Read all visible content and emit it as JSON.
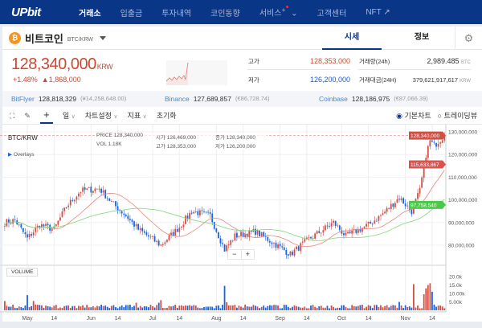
{
  "nav": {
    "logo": "UPbit",
    "items": [
      "거래소",
      "입출금",
      "투자내역",
      "코인동향",
      "서비스",
      "고객센터",
      "NFT ↗"
    ],
    "service_plus": "+"
  },
  "coin": {
    "name": "비트코인",
    "pair": "BTC/KRW",
    "tabs": [
      "시세",
      "정보"
    ]
  },
  "price": {
    "current": "128,340,000",
    "unit": "KRW",
    "change_pct": "+1.48%",
    "change_abs": "▲1,868,000"
  },
  "stats": {
    "high_label": "고가",
    "high": "128,353,000",
    "low_label": "저가",
    "low": "126,200,000",
    "vol_label": "거래량(24h)",
    "vol": "2,989.485",
    "vol_unit": "BTC",
    "amt_label": "거래대금(24H)",
    "amt": "379,621,917,617",
    "amt_unit": "KRW"
  },
  "exchanges": [
    {
      "name": "BitFlyer",
      "price": "128,818,329",
      "sub": "(¥14,258,648.00)"
    },
    {
      "name": "Binance",
      "price": "127,689,857",
      "sub": "(€86,728.74)"
    },
    {
      "name": "Coinbase",
      "price": "128,186,975",
      "sub": "(€87,066.39)"
    }
  ],
  "toolbar": {
    "interval": "일",
    "settings": "차트설정",
    "indicators": "지표",
    "reset": "초기화",
    "basic_chart": "기본차트",
    "tradingview": "트레이딩뷰"
  },
  "legend": {
    "symbol": "BTC/KRW",
    "overlays": "Overlays",
    "price_label": "PRICE",
    "price": "128,340,000",
    "open_label": "시가",
    "open": "126,469,000",
    "close_label": "종가",
    "close": "128,340,000",
    "vol_label": "VOL",
    "vol": "1.18K",
    "high_label": "고가",
    "high": "128,353,000",
    "low_label": "저가",
    "low": "126,200,000",
    "volume_title": "VOLUME"
  },
  "colors": {
    "up": "#d24f45",
    "down": "#1763e8",
    "ma_short": "#e8877d",
    "ma_long": "#7fd67a",
    "nav": "#093687"
  },
  "chart_data": {
    "type": "candlestick",
    "price_ticks": [
      80000000,
      90000000,
      100000000,
      110000000,
      120000000,
      130000000
    ],
    "price_tick_labels": [
      "80,000,000",
      "90,000,000",
      "100,000,000",
      "110,000,000",
      "120,000,000",
      "130,000,000"
    ],
    "volume_ticks": [
      5000,
      10000,
      15000,
      20000
    ],
    "volume_tick_labels": [
      "5.00k",
      "10.00k",
      "15.0k",
      "20.0k"
    ],
    "x_ticks": [
      {
        "date": "2024-05-01",
        "label": "May"
      },
      {
        "date": "2024-05-14",
        "label": "14"
      },
      {
        "date": "2024-06-01",
        "label": "Jun"
      },
      {
        "date": "2024-06-14",
        "label": "14"
      },
      {
        "date": "2024-07-01",
        "label": "Jul"
      },
      {
        "date": "2024-07-14",
        "label": "14"
      },
      {
        "date": "2024-08-01",
        "label": "Aug"
      },
      {
        "date": "2024-08-14",
        "label": "14"
      },
      {
        "date": "2024-09-01",
        "label": "Sep"
      },
      {
        "date": "2024-09-14",
        "label": "14"
      },
      {
        "date": "2024-10-01",
        "label": "Oct"
      },
      {
        "date": "2024-10-14",
        "label": "14"
      },
      {
        "date": "2024-11-01",
        "label": "Nov"
      },
      {
        "date": "2024-11-14",
        "label": "14"
      }
    ],
    "close_keypoints": [
      [
        "2024-04-20",
        90
      ],
      [
        "2024-04-25",
        91
      ],
      [
        "2024-05-01",
        83
      ],
      [
        "2024-05-07",
        89
      ],
      [
        "2024-05-14",
        87
      ],
      [
        "2024-05-20",
        97
      ],
      [
        "2024-05-27",
        104
      ],
      [
        "2024-06-05",
        105
      ],
      [
        "2024-06-12",
        98
      ],
      [
        "2024-06-18",
        93
      ],
      [
        "2024-06-24",
        87
      ],
      [
        "2024-07-05",
        80
      ],
      [
        "2024-07-14",
        88
      ],
      [
        "2024-07-20",
        95
      ],
      [
        "2024-07-29",
        93
      ],
      [
        "2024-08-05",
        78
      ],
      [
        "2024-08-10",
        84
      ],
      [
        "2024-08-20",
        86
      ],
      [
        "2024-08-27",
        82
      ],
      [
        "2024-09-06",
        76
      ],
      [
        "2024-09-14",
        82
      ],
      [
        "2024-09-27",
        90
      ],
      [
        "2024-10-03",
        84
      ],
      [
        "2024-10-14",
        89
      ],
      [
        "2024-10-20",
        93
      ],
      [
        "2024-10-29",
        101
      ],
      [
        "2024-11-04",
        95
      ],
      [
        "2024-11-08",
        104
      ],
      [
        "2024-11-11",
        120
      ],
      [
        "2024-11-13",
        126
      ],
      [
        "2024-11-15",
        124
      ],
      [
        "2024-11-20",
        128.34
      ]
    ],
    "price_unit": "million KRW",
    "volume_spikes": [
      [
        "2024-04-20",
        5500
      ],
      [
        "2024-05-01",
        9000
      ],
      [
        "2024-05-04",
        5500
      ],
      [
        "2024-06-23",
        4500
      ],
      [
        "2024-07-04",
        4500
      ],
      [
        "2024-07-05",
        6000
      ],
      [
        "2024-08-05",
        14500
      ],
      [
        "2024-08-06",
        4800
      ],
      [
        "2024-10-29",
        5000
      ],
      [
        "2024-11-05",
        15500
      ],
      [
        "2024-11-10",
        9500
      ],
      [
        "2024-11-11",
        13000
      ],
      [
        "2024-11-12",
        15000
      ],
      [
        "2024-11-13",
        16000
      ],
      [
        "2024-11-14",
        11000
      ]
    ],
    "current_price": 128340000,
    "current_price_label": "128,340,000",
    "ma_short_label": "115,633,867",
    "ma_short_value": 115633867,
    "ma_long_label": "97,758,540",
    "ma_long_value": 97758540
  }
}
